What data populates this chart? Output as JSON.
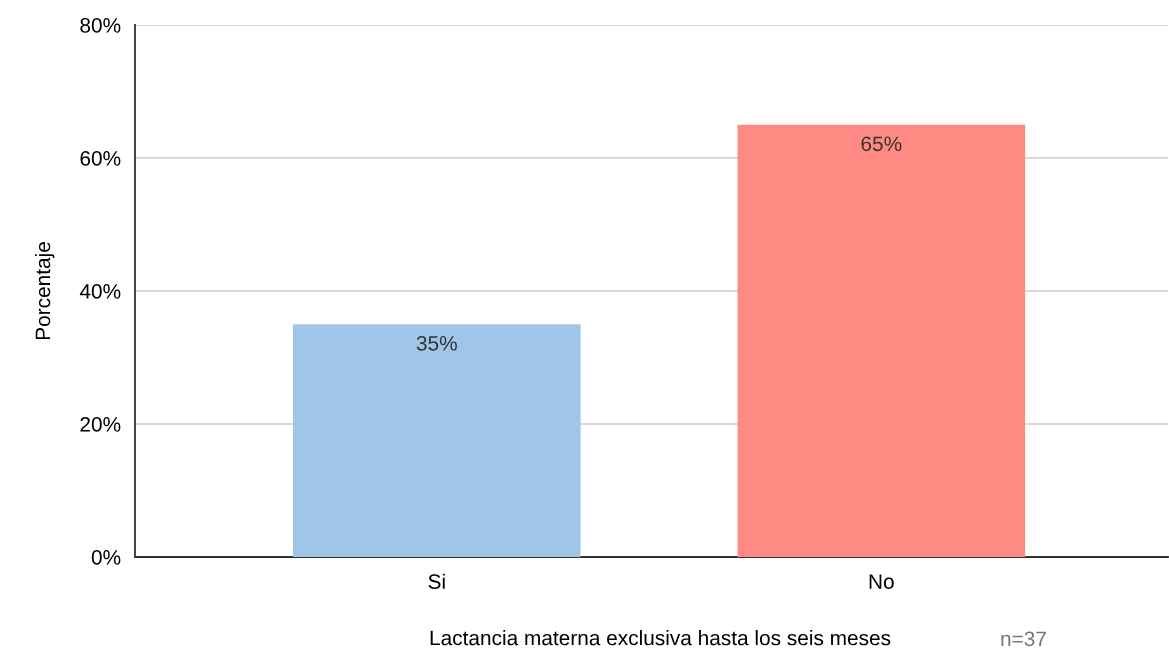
{
  "chart_data": {
    "type": "bar",
    "xlabel": "Lactancia materna exclusiva hasta los seis meses",
    "ylabel": "Porcentaje",
    "categories": [
      "Si",
      "No"
    ],
    "values": [
      35,
      65
    ],
    "colors": [
      "#9fc5e8",
      "#ff8a84"
    ],
    "value_labels": [
      "35%",
      "65%"
    ],
    "ylim": [
      0,
      80
    ],
    "yticks": [
      {
        "value": 0,
        "label": "0%"
      },
      {
        "value": 20,
        "label": "20%"
      },
      {
        "value": 40,
        "label": "40%"
      },
      {
        "value": 60,
        "label": "60%"
      },
      {
        "value": 80,
        "label": "80%"
      }
    ],
    "grid": "y",
    "legend": false,
    "annotations": [
      "n=37"
    ]
  }
}
